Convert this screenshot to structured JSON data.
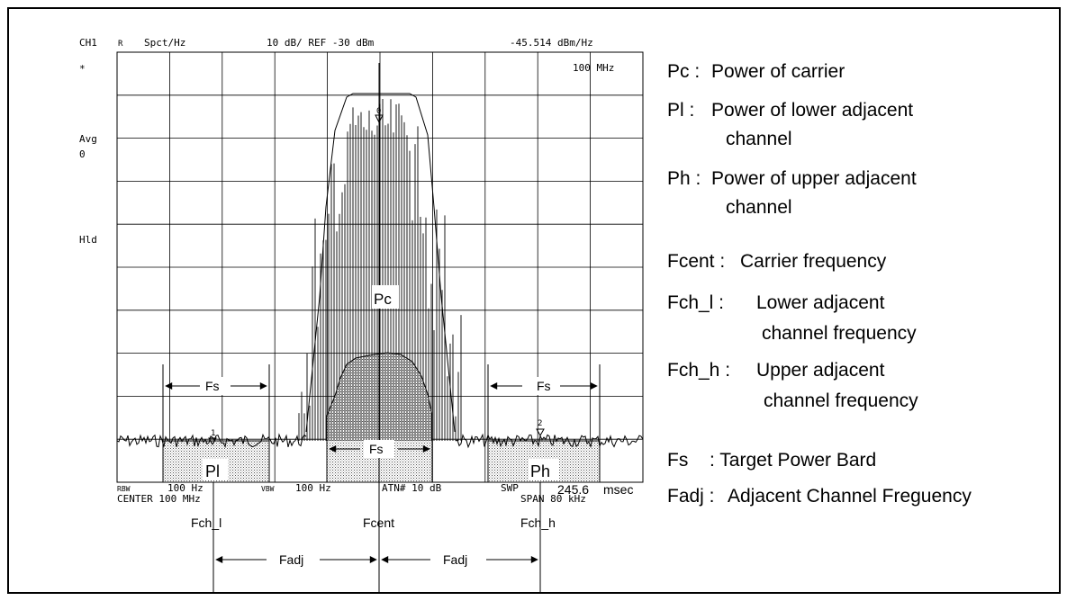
{
  "instrument": {
    "channel": "CH1",
    "channel_sub": "R",
    "unit": "Spct/Hz",
    "scale": "10 dB/ REF -30 dBm",
    "marker_value": "-45.514 dBm/Hz",
    "marker_freq": "100 MHz",
    "side_star": "*",
    "side_avg": "Avg",
    "side_avg_val": "0",
    "side_hld": "Hld",
    "rbw_label": "RBW",
    "rbw_value": "100 Hz",
    "vbw_label": "VBW",
    "vbw_value": "100 Hz",
    "atn": "ATN# 10 dB",
    "swp_label": "SWP",
    "swp_value": "245.6",
    "swp_unit": "msec",
    "center": "CENTER 100 MHz",
    "span": "SPAN 80 kHz",
    "marker_labels": [
      "1",
      "0",
      "2"
    ]
  },
  "bands": {
    "pl": "Pl",
    "pc": "Pc",
    "ph": "Ph",
    "fs_left": "Fs",
    "fs_center": "Fs",
    "fs_right": "Fs"
  },
  "markers_below": {
    "fch_l": "Fch_l",
    "fcent": "Fcent",
    "fch_h": "Fch_h",
    "fadj_left": "Fadj",
    "fadj_right": "Fadj"
  },
  "legend": {
    "pc_key": "Pc :",
    "pc_text": "Power of carrier",
    "pl_key": "Pl  :",
    "pl_text1": "Power of lower adjacent",
    "pl_text2": "channel",
    "ph_key": "Ph :",
    "ph_text1": "Power of upper adjacent",
    "ph_text2": "channel",
    "fcent_key": "Fcent  :",
    "fcent_text": "Carrier frequency",
    "fchl_key": "Fch_l  :",
    "fchl_text1": "Lower adjacent",
    "fchl_text2": "channel frequency",
    "fchh_key": "Fch_h :",
    "fchh_text1": "Upper adjacent",
    "fchh_text2": "channel frequency",
    "fs_key": "Fs",
    "fs_text": ": Target  Power  Bard",
    "fadj_key": "Fadj :",
    "fadj_text": "Adjacent Channel Freguency"
  }
}
